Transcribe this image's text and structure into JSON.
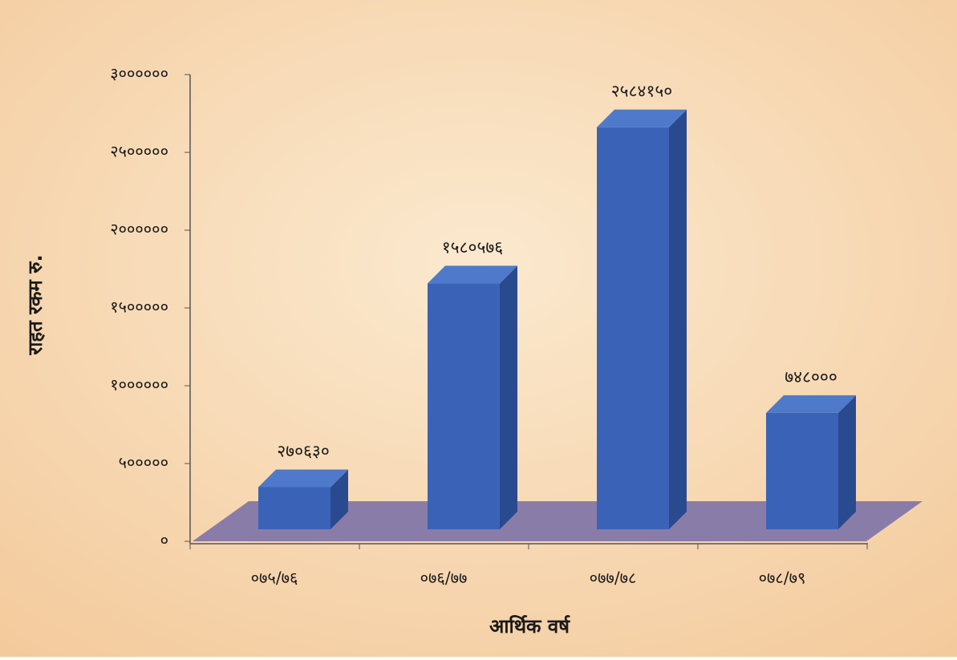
{
  "chart_data": {
    "type": "bar3d",
    "y_label": "राहत रकम रु.",
    "x_label": "आर्थिक वर्ष",
    "categories": [
      "०७५/७६",
      "०७६/७७",
      "०७७/७८",
      "०७८/७९"
    ],
    "values": [
      270630,
      1580576,
      2584150,
      748000
    ],
    "value_labels": [
      "२७०६३०",
      "१५८०५७६",
      "२५८४१५०",
      "७४८०००"
    ],
    "color": "#3a63b8",
    "ylim": [
      0,
      3000000
    ],
    "yticks": [
      {
        "value": 0,
        "label": "०"
      },
      {
        "value": 500000,
        "label": "५०००००"
      },
      {
        "value": 1000000,
        "label": "१००००००"
      },
      {
        "value": 1500000,
        "label": "१५०००००"
      },
      {
        "value": 2000000,
        "label": "२००००००"
      },
      {
        "value": 2500000,
        "label": "२५०००००"
      },
      {
        "value": 3000000,
        "label": "३००००००"
      }
    ]
  }
}
